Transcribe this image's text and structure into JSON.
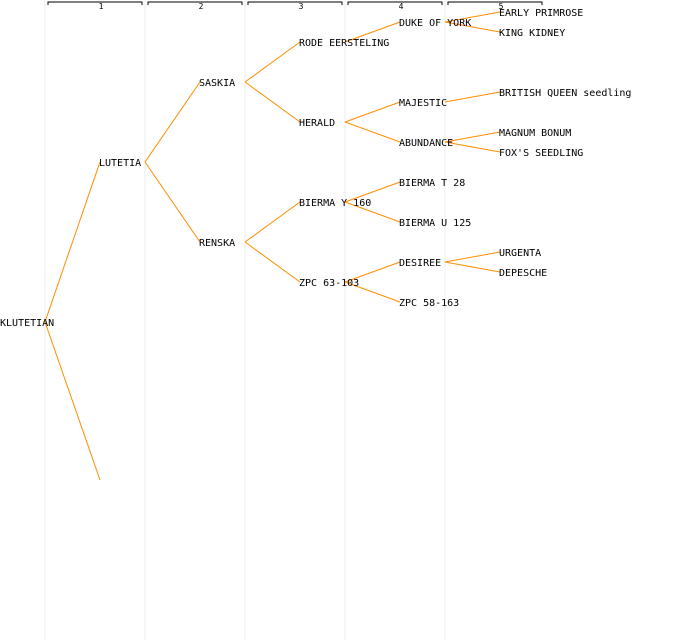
{
  "generations": [
    "1",
    "2",
    "3",
    "4",
    "5"
  ],
  "root": {
    "label": "KLUTETIAN",
    "children": [
      {
        "label": "LUTETIA",
        "children": [
          {
            "label": "SASKIA",
            "children": [
              {
                "label": "RODE EERSTELING",
                "children": [
                  {
                    "label": "DUKE OF YORK",
                    "children": [
                      {
                        "label": "EARLY PRIMROSE"
                      },
                      {
                        "label": "KING KIDNEY"
                      }
                    ]
                  }
                ]
              },
              {
                "label": "HERALD",
                "children": [
                  {
                    "label": "MAJESTIC",
                    "children": [
                      {
                        "label": "BRITISH QUEEN seedling"
                      }
                    ]
                  },
                  {
                    "label": "ABUNDANCE",
                    "children": [
                      {
                        "label": "MAGNUM BONUM"
                      },
                      {
                        "label": "FOX'S SEEDLING"
                      }
                    ]
                  }
                ]
              }
            ]
          },
          {
            "label": "RENSKA",
            "children": [
              {
                "label": "BIERMA Y 160",
                "children": [
                  {
                    "label": "BIERMA T 28"
                  },
                  {
                    "label": "BIERMA U 125"
                  }
                ]
              },
              {
                "label": "ZPC 63-103",
                "children": [
                  {
                    "label": "DESIREE",
                    "children": [
                      {
                        "label": "URGENTA"
                      },
                      {
                        "label": "DEPESCHE"
                      }
                    ]
                  },
                  {
                    "label": "ZPC 58-163"
                  }
                ]
              }
            ]
          }
        ]
      },
      {
        "label": ""
      }
    ]
  },
  "colors": {
    "edge": "#ff8c00",
    "column_divider": "#e8e8e8",
    "bracket": "#000000",
    "text": "#000000"
  }
}
